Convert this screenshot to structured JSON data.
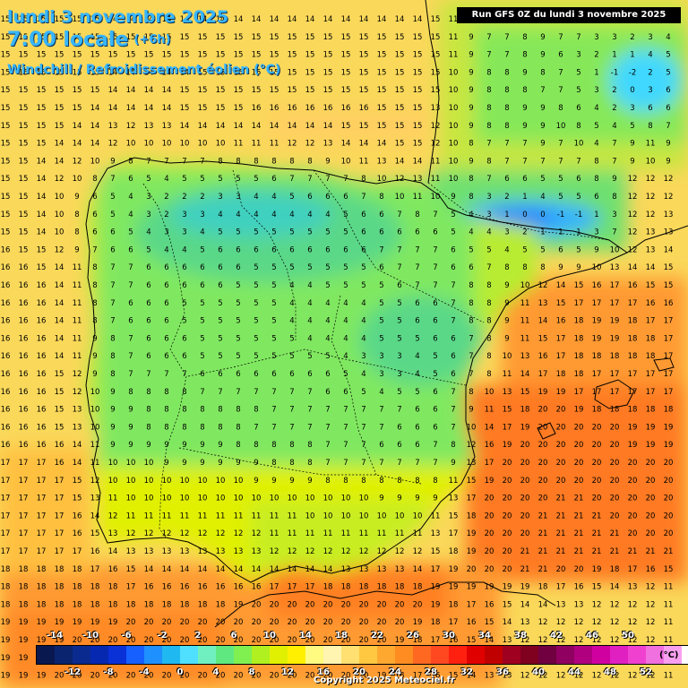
{
  "header": {
    "date": "lundi 3 novembre 2025",
    "time": "7:00 locale",
    "offset": "(+6h)",
    "parameter": "Windchill / Refroidissement éolien (°C)",
    "run": "Run GFS 0Z du lundi 3 novembre 2025"
  },
  "legend": {
    "unit": "(°C)",
    "top_labels": [
      "-14",
      "-10",
      "-6",
      "-2",
      "2",
      "6",
      "10",
      "14",
      "18",
      "22",
      "26",
      "30",
      "34",
      "38",
      "42",
      "46",
      "50"
    ],
    "bottom_labels": [
      "-12",
      "-8",
      "-4",
      "0",
      "4",
      "8",
      "12",
      "16",
      "20",
      "24",
      "28",
      "32",
      "36",
      "40",
      "44",
      "48",
      "52"
    ],
    "colors": [
      "#0a1850",
      "#0a2470",
      "#0a2a90",
      "#0628b0",
      "#0a30d8",
      "#1660ff",
      "#1e90ff",
      "#20b8f0",
      "#50e0ff",
      "#70f0c0",
      "#60e880",
      "#80f050",
      "#b0f020",
      "#e0f000",
      "#fff000",
      "#fffa80",
      "#fff4b0",
      "#ffe070",
      "#ffc840",
      "#ffa830",
      "#ff8c20",
      "#ff6820",
      "#ff4820",
      "#ff2010",
      "#e00000",
      "#c00000",
      "#a00020",
      "#800020",
      "#700040",
      "#900060",
      "#b00080",
      "#d000a0",
      "#e020c0",
      "#f040d0",
      "#f070e0",
      "#f8a0f0",
      "#ffffff"
    ]
  },
  "map": {
    "grid_values": [
      "15 15 15 15 15 15 14 14 14 14 14 14 14 14 14 14 14 14 14 14 14 14 14 14 15 11 9 8 7 8 6 7 6 3 5 4 5 6",
      "15 15 15 15 15 15 15 15 15 15 15 15 15 15 15 15 15 15 15 15 15 15 15 15 15 11 9 7 7 8 9 7 7 3 3 2 3 4",
      "15 15 15 15 15 15 15 15 15 15 15 15 15 15 15 15 15 15 15 15 15 15 15 15 15 11 9 7 7 8 9 6 3 2 1 1 4 5",
      "15 15 15 15 15 15 14 14 14 14 14 15 15 15 15 15 15 15 15 15 15 15 15 15 15 10 9 8 8 9 8 7 5 1 -1 -2 2 5",
      "15 15 15 15 15 15 14 14 14 14 15 15 15 15 15 15 15 15 15 15 15 15 15 15 15 10 9 8 8 8 7 7 5 3 2 0 3 6",
      "15 15 15 15 15 14 14 14 14 14 15 15 15 15 16 16 16 16 16 16 16 15 15 15 13 10 9 8 8 9 9 8 6 4 2 3 6 6",
      "15 15 15 15 14 14 13 12 13 13 14 14 14 14 14 14 14 14 14 15 15 15 15 15 12 10 9 8 8 9 9 10 8 5 4 5 8 7",
      "15 15 15 14 14 14 12 10 10 10 10 10 10 11 11 11 12 12 13 14 14 14 15 15 12 10 8 7 7 7 9 7 10 4 7 9 11 9",
      "15 15 14 14 12 10 9 8 7 7 7 7 8 8 8 8 8 8 9 10 11 13 14 14 11 10 9 8 7 7 7 7 7 8 7 9 10 9",
      "15 15 14 12 10 8 7 6 5 4 5 5 5 5 5 6 7 7 7 7 8 10 12 13 11 10 8 7 6 6 5 5 6 8 9 12 12 12",
      "15 15 14 10 9 6 5 4 3 2 2 2 3 3 4 4 5 6 6 6 7 8 10 11 10 9 8 3 2 1 4 5 5 6 8 12 12 12",
      "15 15 14 10 8 6 5 4 3 2 3 3 4 4 4 4 4 4 4 5 6 6 7 8 7 5 4 3 1 0 0 -1 -1 1 3 12 12 13",
      "15 15 14 10 8 6 6 5 4 3 3 4 5 5 5 5 5 5 5 5 6 6 6 6 6 5 4 4 3 2 1 1 1 3 7 12 13 13",
      "16 15 15 12 9 7 6 6 5 4 4 5 6 6 6 6 6 6 6 6 6 7 7 7 7 6 5 5 4 5 5 6 5 9 10 12 13 14",
      "16 16 15 14 11 8 7 7 6 6 6 6 6 6 5 5 5 5 5 5 5 6 7 7 7 6 6 7 8 8 8 9 9 10 13 14 14 15",
      "16 16 16 14 11 8 7 7 6 6 6 6 6 5 5 5 4 4 5 5 5 5 6 7 7 7 8 8 9 10 12 14 15 16 17 16 15 15",
      "16 16 16 14 11 8 7 6 6 6 5 5 5 5 5 5 4 4 4 4 4 5 5 6 6 7 8 8 9 11 13 15 17 17 17 17 16 16",
      "16 16 16 14 11 8 7 6 6 6 5 5 5 5 5 5 4 4 4 4 4 5 5 6 6 7 8 8 9 11 14 16 18 19 19 18 17 17",
      "16 16 16 14 11 9 8 7 6 6 6 5 5 5 5 5 5 4 4 4 4 5 5 5 6 6 7 8 9 11 15 17 18 19 19 18 18 17",
      "16 16 16 14 11 9 8 7 6 6 6 5 5 5 5 5 5 5 5 4 3 3 3 4 5 6 7 8 10 13 16 17 18 18 18 18 18 17",
      "16 16 16 15 12 9 8 7 7 7 7 6 6 6 6 6 6 6 6 5 4 3 3 4 5 6 7 8 11 14 17 18 18 17 17 17 17 17",
      "16 16 16 15 12 10 9 8 8 8 8 7 7 7 7 7 7 7 6 6 5 4 5 5 6 7 8 10 13 15 19 19 17 17 17 17 17 17",
      "16 16 16 15 13 10 9 9 8 8 8 8 8 8 8 7 7 7 7 7 7 7 7 6 6 7 9 11 15 18 20 20 19 18 18 18 18 18",
      "16 16 16 15 13 10 9 9 8 8 8 8 8 8 7 7 7 7 7 7 7 7 6 6 6 7 10 14 17 19 20 20 20 20 20 19 19 19",
      "16 16 16 16 14 11 9 9 9 9 9 9 9 8 8 8 8 8 7 7 7 6 6 6 7 8 12 16 19 20 20 20 20 20 20 19 19 19",
      "17 17 17 16 14 11 10 10 10 9 9 9 9 9 9 8 8 8 7 7 7 7 7 7 7 9 13 17 20 20 20 20 20 20 20 20 20 20",
      "17 17 17 17 15 12 10 10 10 10 10 10 10 10 9 9 9 9 8 8 8 8 8 8 8 11 15 19 20 20 20 20 20 20 20 20 20 20",
      "17 17 17 17 15 13 11 10 10 10 10 10 10 10 10 10 10 10 10 10 10 9 9 9 9 13 17 20 20 20 20 21 21 20 20 20 20 20",
      "17 17 17 17 16 14 12 11 11 11 11 11 11 11 11 11 11 10 10 10 10 10 10 10 11 15 18 20 20 20 21 21 21 21 20 20 20 20",
      "17 17 17 17 16 15 13 12 12 12 12 12 12 12 12 11 11 11 11 11 11 11 11 11 13 17 19 20 20 20 21 21 21 21 21 20 20 20",
      "17 17 17 17 17 16 14 13 13 13 13 13 13 13 13 12 12 12 12 12 12 12 12 12 15 18 19 20 20 21 21 21 21 21 21 21 21 21",
      "18 18 18 18 18 17 16 15 14 14 14 14 14 14 14 14 14 14 14 13 13 13 13 14 17 19 20 20 20 21 21 20 20 19 18 17 16 15",
      "18 18 18 18 18 18 18 17 16 16 16 16 16 16 16 17 17 17 18 18 18 18 18 18 19 19 19 19 19 19 18 17 16 15 14 13 12 11",
      "18 18 18 18 18 18 18 18 18 18 18 18 18 19 20 20 20 20 20 20 20 20 20 20 19 18 17 16 15 14 14 13 13 12 12 12 12 11",
      "19 19 19 19 19 19 19 20 20 20 20 20 20 20 20 20 20 20 20 20 20 20 20 19 18 17 16 15 14 13 12 12 12 12 12 12 12 11",
      "19 19 19 19 20 20 20 20 20 20 20 20 20 20 20 20 20 20 20 20 20 20 19 18 17 16 15 14 13 12 12 12 12 12 12 12 12 11",
      "19 19 19 20 20 20 20 20 20 20 20 20 20 20 20 20 20 20 20 20 20 19 18 17 16 15 14 13 13 12 12 12 12 12 12 12 12 11",
      "19 19 19 20 20 20 20 20 20 20 20 20 20 20 20 20 20 20 20 20 20 19 18 17 16 15 14 13 13 12 12 12 12 12 12 12 12 11",
      "20 20 20 20 20 20 20 20 20 20 20 20 20 20 20 20 20 20 20 20 20 19 18 17 16 15 14 14 13 13 12 12 12 12 12 12 12 12"
    ]
  },
  "copyright": "Copyright 2025 Meteociel.fr"
}
